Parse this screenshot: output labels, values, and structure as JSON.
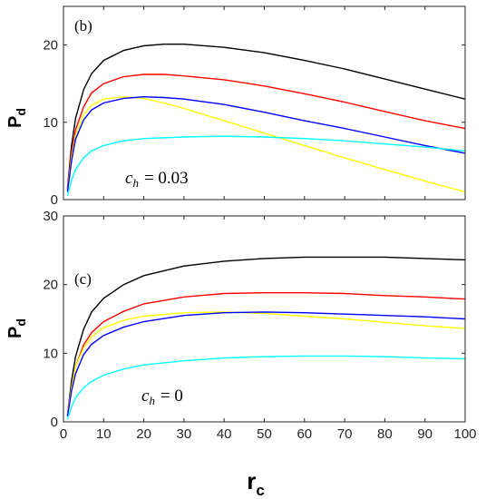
{
  "chart_data": [
    {
      "type": "line",
      "panel_label": "(b)",
      "ylabel_main": "P",
      "ylabel_sub": "d",
      "annotation_var": "c",
      "annotation_sub": "h",
      "annotation_value": "= 0.03",
      "xlim": [
        0,
        100
      ],
      "ylim": [
        0,
        25
      ],
      "xticks": [],
      "yticks": [
        0,
        10,
        20
      ],
      "grid": false,
      "series": [
        {
          "color": "#000000",
          "points": [
            [
              1,
              1.5
            ],
            [
              2,
              7
            ],
            [
              3,
              10.5
            ],
            [
              5,
              14.2
            ],
            [
              7,
              16.3
            ],
            [
              10,
              18
            ],
            [
              15,
              19.3
            ],
            [
              20,
              19.9
            ],
            [
              25,
              20.1
            ],
            [
              30,
              20.1
            ],
            [
              40,
              19.7
            ],
            [
              50,
              19
            ],
            [
              60,
              18
            ],
            [
              70,
              16.9
            ],
            [
              80,
              15.6
            ],
            [
              90,
              14.3
            ],
            [
              100,
              13
            ]
          ]
        },
        {
          "color": "#ff0000",
          "points": [
            [
              1,
              1.3
            ],
            [
              2,
              6
            ],
            [
              3,
              9
            ],
            [
              5,
              12
            ],
            [
              7,
              13.8
            ],
            [
              10,
              15
            ],
            [
              15,
              15.9
            ],
            [
              20,
              16.2
            ],
            [
              25,
              16.2
            ],
            [
              30,
              16
            ],
            [
              40,
              15.5
            ],
            [
              50,
              14.7
            ],
            [
              60,
              13.7
            ],
            [
              70,
              12.6
            ],
            [
              80,
              11.4
            ],
            [
              90,
              10.2
            ],
            [
              100,
              9.2
            ]
          ]
        },
        {
          "color": "#ffff00",
          "points": [
            [
              1,
              1.2
            ],
            [
              2,
              5.5
            ],
            [
              3,
              8.3
            ],
            [
              5,
              11
            ],
            [
              7,
              12.2
            ],
            [
              10,
              13
            ],
            [
              15,
              13.3
            ],
            [
              20,
              13.1
            ],
            [
              25,
              12.5
            ],
            [
              30,
              11.8
            ],
            [
              40,
              10.2
            ],
            [
              50,
              8.6
            ],
            [
              60,
              7
            ],
            [
              70,
              5.4
            ],
            [
              80,
              3.9
            ],
            [
              90,
              2.4
            ],
            [
              100,
              1
            ]
          ]
        },
        {
          "color": "#0000ff",
          "points": [
            [
              1,
              1
            ],
            [
              2,
              5
            ],
            [
              3,
              7.8
            ],
            [
              5,
              10.3
            ],
            [
              7,
              11.6
            ],
            [
              10,
              12.5
            ],
            [
              15,
              13.1
            ],
            [
              20,
              13.3
            ],
            [
              25,
              13.2
            ],
            [
              30,
              13
            ],
            [
              40,
              12.3
            ],
            [
              50,
              11.3
            ],
            [
              60,
              10.2
            ],
            [
              70,
              9.2
            ],
            [
              80,
              8.1
            ],
            [
              90,
              7
            ],
            [
              100,
              6
            ]
          ]
        },
        {
          "color": "#00ffff",
          "points": [
            [
              1,
              0.5
            ],
            [
              2,
              2.5
            ],
            [
              3,
              3.9
            ],
            [
              5,
              5.4
            ],
            [
              7,
              6.3
            ],
            [
              10,
              7
            ],
            [
              15,
              7.6
            ],
            [
              20,
              7.9
            ],
            [
              30,
              8.1
            ],
            [
              40,
              8.2
            ],
            [
              50,
              8.1
            ],
            [
              60,
              7.9
            ],
            [
              70,
              7.6
            ],
            [
              80,
              7.2
            ],
            [
              90,
              6.8
            ],
            [
              100,
              6.3
            ]
          ]
        }
      ]
    },
    {
      "type": "line",
      "panel_label": "(c)",
      "ylabel_main": "P",
      "ylabel_sub": "d",
      "xlabel_main": "r",
      "xlabel_sub": "c",
      "annotation_var": "c",
      "annotation_sub": "h",
      "annotation_value": "= 0",
      "xlim": [
        0,
        100
      ],
      "ylim": [
        0,
        30
      ],
      "xticks": [
        0,
        10,
        20,
        30,
        40,
        50,
        60,
        70,
        80,
        90,
        100
      ],
      "yticks": [
        0,
        10,
        20,
        30
      ],
      "grid": false,
      "series": [
        {
          "color": "#000000",
          "points": [
            [
              1,
              1
            ],
            [
              2,
              6
            ],
            [
              3,
              9.5
            ],
            [
              5,
              13.5
            ],
            [
              7,
              16
            ],
            [
              10,
              18
            ],
            [
              15,
              20
            ],
            [
              20,
              21.3
            ],
            [
              30,
              22.7
            ],
            [
              40,
              23.4
            ],
            [
              50,
              23.8
            ],
            [
              60,
              24
            ],
            [
              70,
              24
            ],
            [
              80,
              24
            ],
            [
              90,
              23.8
            ],
            [
              100,
              23.6
            ]
          ]
        },
        {
          "color": "#ff0000",
          "points": [
            [
              1,
              1
            ],
            [
              2,
              5
            ],
            [
              3,
              8
            ],
            [
              5,
              11.2
            ],
            [
              7,
              13
            ],
            [
              10,
              14.6
            ],
            [
              15,
              16.1
            ],
            [
              20,
              17.2
            ],
            [
              30,
              18.2
            ],
            [
              40,
              18.7
            ],
            [
              50,
              18.8
            ],
            [
              60,
              18.8
            ],
            [
              70,
              18.7
            ],
            [
              80,
              18.4
            ],
            [
              90,
              18.2
            ],
            [
              100,
              17.9
            ]
          ]
        },
        {
          "color": "#ffff00",
          "points": [
            [
              1,
              1
            ],
            [
              2,
              5
            ],
            [
              3,
              8
            ],
            [
              5,
              10.8
            ],
            [
              7,
              12.4
            ],
            [
              10,
              13.7
            ],
            [
              15,
              14.8
            ],
            [
              20,
              15.4
            ],
            [
              30,
              15.9
            ],
            [
              40,
              16
            ],
            [
              50,
              15.8
            ],
            [
              60,
              15.4
            ],
            [
              70,
              15
            ],
            [
              80,
              14.5
            ],
            [
              90,
              14
            ],
            [
              100,
              13.6
            ]
          ]
        },
        {
          "color": "#0000ff",
          "points": [
            [
              1,
              0.8
            ],
            [
              2,
              4.5
            ],
            [
              3,
              7
            ],
            [
              5,
              9.8
            ],
            [
              7,
              11.3
            ],
            [
              10,
              12.6
            ],
            [
              15,
              13.8
            ],
            [
              20,
              14.6
            ],
            [
              30,
              15.5
            ],
            [
              40,
              15.9
            ],
            [
              50,
              16
            ],
            [
              60,
              15.9
            ],
            [
              70,
              15.7
            ],
            [
              80,
              15.5
            ],
            [
              90,
              15.3
            ],
            [
              100,
              15
            ]
          ]
        },
        {
          "color": "#00ffff",
          "points": [
            [
              1,
              0.4
            ],
            [
              2,
              2.2
            ],
            [
              3,
              3.5
            ],
            [
              5,
              5
            ],
            [
              7,
              5.9
            ],
            [
              10,
              6.8
            ],
            [
              15,
              7.7
            ],
            [
              20,
              8.3
            ],
            [
              30,
              8.9
            ],
            [
              40,
              9.3
            ],
            [
              50,
              9.5
            ],
            [
              60,
              9.6
            ],
            [
              70,
              9.6
            ],
            [
              80,
              9.5
            ],
            [
              90,
              9.3
            ],
            [
              100,
              9.2
            ]
          ]
        }
      ]
    }
  ]
}
